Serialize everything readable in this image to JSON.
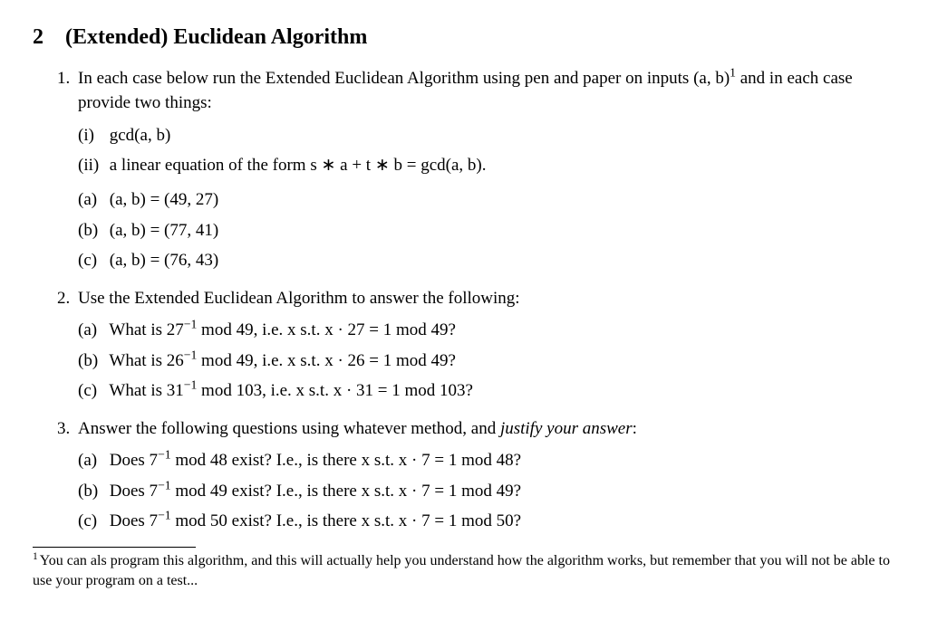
{
  "section": {
    "number": "2",
    "title": "(Extended) Euclidean Algorithm"
  },
  "q1": {
    "intro_a": "In each case below run the Extended Euclidean Algorithm using pen and paper on inputs",
    "intro_b": "(a, b)",
    "intro_c": " and in each case provide two things:",
    "i_label": "(i)",
    "i_text": "gcd(a, b)",
    "ii_label": "(ii)",
    "ii_text": "a linear equation of the form s ∗ a + t ∗ b = gcd(a, b).",
    "a_label": "(a)",
    "a_text": "(a, b) = (49, 27)",
    "b_label": "(b)",
    "b_text": "(a, b) = (77, 41)",
    "c_label": "(c)",
    "c_text": "(a, b) = (76, 43)"
  },
  "q2": {
    "intro": "Use the Extended Euclidean Algorithm to answer the following:",
    "a_label": "(a)",
    "a_pre": "What is 27",
    "a_post": " mod 49, i.e. x s.t. x · 27 = 1 mod 49?",
    "b_label": "(b)",
    "b_pre": "What is 26",
    "b_post": " mod 49, i.e. x s.t. x · 26 = 1 mod 49?",
    "c_label": "(c)",
    "c_pre": "What is 31",
    "c_post": " mod 103, i.e. x s.t. x · 31 = 1 mod 103?"
  },
  "q3": {
    "intro_a": "Answer the following questions using whatever method, and ",
    "intro_em": "justify your answer",
    "intro_b": ":",
    "a_label": "(a)",
    "a_pre": "Does 7",
    "a_post": " mod 48 exist? I.e., is there x s.t. x · 7 = 1 mod 48?",
    "b_label": "(b)",
    "b_pre": "Does 7",
    "b_post": " mod 49 exist? I.e., is there x s.t. x · 7 = 1 mod 49?",
    "c_label": "(c)",
    "c_pre": "Does 7",
    "c_post": " mod 50 exist? I.e., is there x s.t. x · 7 = 1 mod 50?"
  },
  "exp_neg1": "−1",
  "fn_mark": "1",
  "footnote": "You can als program this algorithm, and this will actually help you understand how the algorithm works, but remember that you will not be able to use your program on a test..."
}
